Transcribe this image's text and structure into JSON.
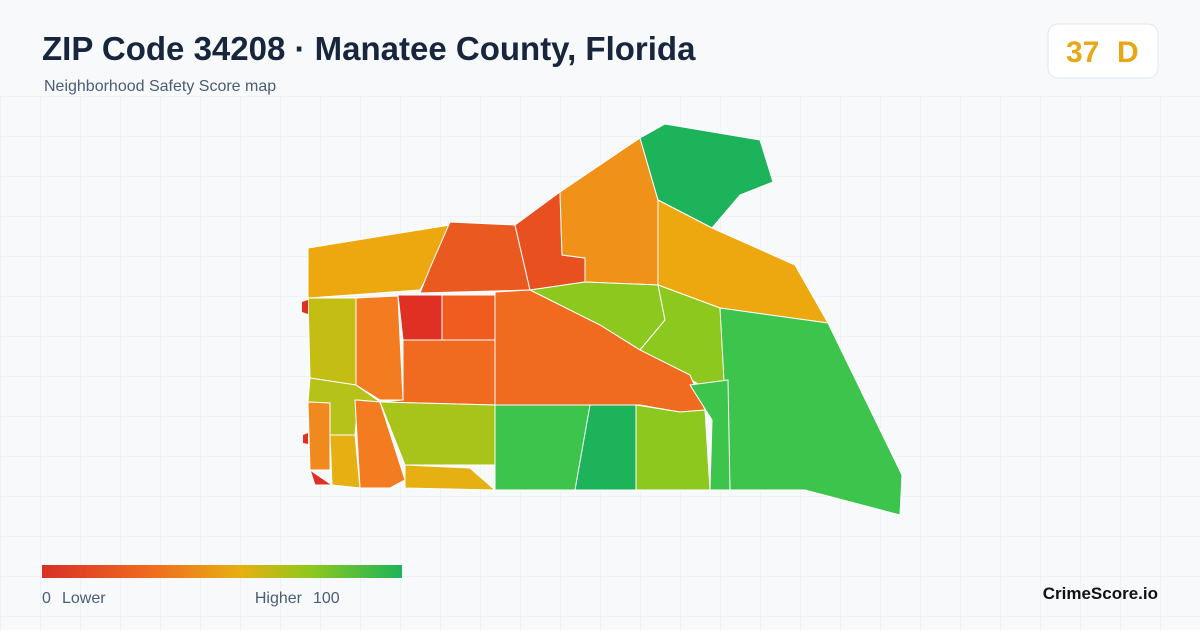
{
  "header": {
    "title": "ZIP Code 34208 · Manatee County, Florida",
    "subtitle": "Neighborhood Safety Score map"
  },
  "score": {
    "value": 37,
    "grade": "D"
  },
  "legend": {
    "min": 0,
    "min_label": "Lower",
    "max_label": "Higher",
    "max": 100
  },
  "brand": "CrimeScore.io"
}
